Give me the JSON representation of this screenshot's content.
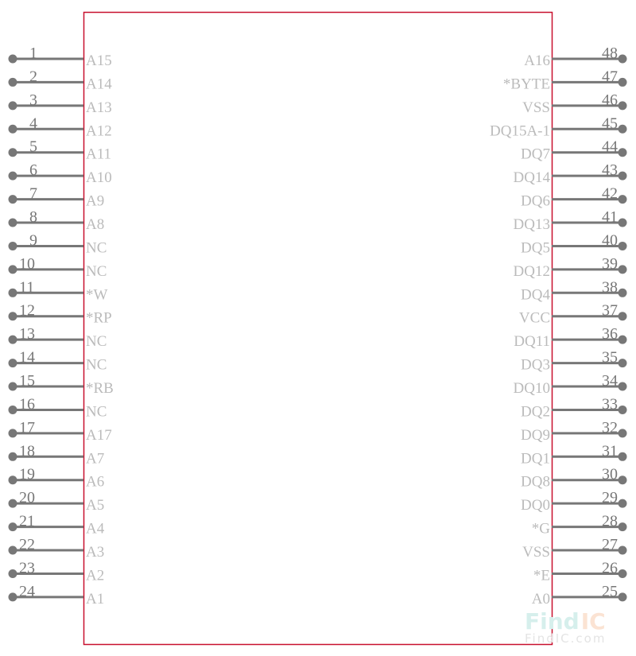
{
  "colors": {
    "body_outline": "#c8102e",
    "pin": "#777777",
    "pin_label": "#bbbbbb",
    "watermark_find": "#d6efec",
    "watermark_ic": "#fbe3d3"
  },
  "left_pins": [
    {
      "number": "1",
      "name": "A15"
    },
    {
      "number": "2",
      "name": "A14"
    },
    {
      "number": "3",
      "name": "A13"
    },
    {
      "number": "4",
      "name": "A12"
    },
    {
      "number": "5",
      "name": "A11"
    },
    {
      "number": "6",
      "name": "A10"
    },
    {
      "number": "7",
      "name": "A9"
    },
    {
      "number": "8",
      "name": "A8"
    },
    {
      "number": "9",
      "name": "NC"
    },
    {
      "number": "10",
      "name": "NC"
    },
    {
      "number": "11",
      "name": "*W"
    },
    {
      "number": "12",
      "name": "*RP"
    },
    {
      "number": "13",
      "name": "NC"
    },
    {
      "number": "14",
      "name": "NC"
    },
    {
      "number": "15",
      "name": "*RB"
    },
    {
      "number": "16",
      "name": "NC"
    },
    {
      "number": "17",
      "name": "A17"
    },
    {
      "number": "18",
      "name": "A7"
    },
    {
      "number": "19",
      "name": "A6"
    },
    {
      "number": "20",
      "name": "A5"
    },
    {
      "number": "21",
      "name": "A4"
    },
    {
      "number": "22",
      "name": "A3"
    },
    {
      "number": "23",
      "name": "A2"
    },
    {
      "number": "24",
      "name": "A1"
    }
  ],
  "right_pins": [
    {
      "number": "48",
      "name": "A16"
    },
    {
      "number": "47",
      "name": "*BYTE"
    },
    {
      "number": "46",
      "name": "VSS"
    },
    {
      "number": "45",
      "name": "DQ15A-1"
    },
    {
      "number": "44",
      "name": "DQ7"
    },
    {
      "number": "43",
      "name": "DQ14"
    },
    {
      "number": "42",
      "name": "DQ6"
    },
    {
      "number": "41",
      "name": "DQ13"
    },
    {
      "number": "40",
      "name": "DQ5"
    },
    {
      "number": "39",
      "name": "DQ12"
    },
    {
      "number": "38",
      "name": "DQ4"
    },
    {
      "number": "37",
      "name": "VCC"
    },
    {
      "number": "36",
      "name": "DQ11"
    },
    {
      "number": "35",
      "name": "DQ3"
    },
    {
      "number": "34",
      "name": "DQ10"
    },
    {
      "number": "33",
      "name": "DQ2"
    },
    {
      "number": "32",
      "name": "DQ9"
    },
    {
      "number": "31",
      "name": "DQ1"
    },
    {
      "number": "30",
      "name": "DQ8"
    },
    {
      "number": "29",
      "name": "DQ0"
    },
    {
      "number": "28",
      "name": "*G"
    },
    {
      "number": "27",
      "name": "VSS"
    },
    {
      "number": "26",
      "name": "*E"
    },
    {
      "number": "25",
      "name": "A0"
    }
  ],
  "watermark": {
    "logo_find": "Find",
    "logo_ic": "IC",
    "site": "FindIC.com"
  }
}
